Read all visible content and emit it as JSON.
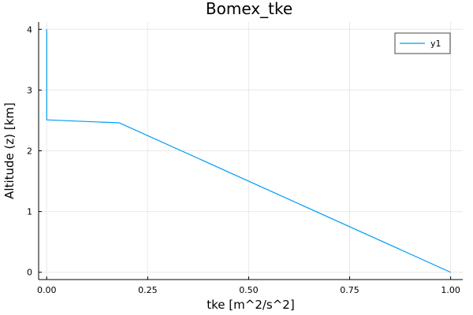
{
  "chart_data": {
    "type": "line",
    "title": "Bomex_tke",
    "xlabel": "tke [m^2/s^2]",
    "ylabel": "Altitude (z) [km]",
    "xlim": [
      -0.02,
      1.03
    ],
    "ylim": [
      -0.12,
      4.12
    ],
    "xticks": [
      0.0,
      0.25,
      0.5,
      0.75,
      1.0
    ],
    "xtick_labels": [
      "0.00",
      "0.25",
      "0.50",
      "0.75",
      "1.00"
    ],
    "yticks": [
      0,
      1,
      2,
      3,
      4
    ],
    "ytick_labels": [
      "0",
      "1",
      "2",
      "3",
      "4"
    ],
    "grid": true,
    "legend_position": "top-right",
    "series": [
      {
        "name": "y1",
        "color": "#009AFA",
        "x": [
          1.0,
          0.18,
          0.0,
          0.0
        ],
        "y": [
          0.0,
          2.46,
          2.51,
          4.0
        ]
      }
    ]
  }
}
